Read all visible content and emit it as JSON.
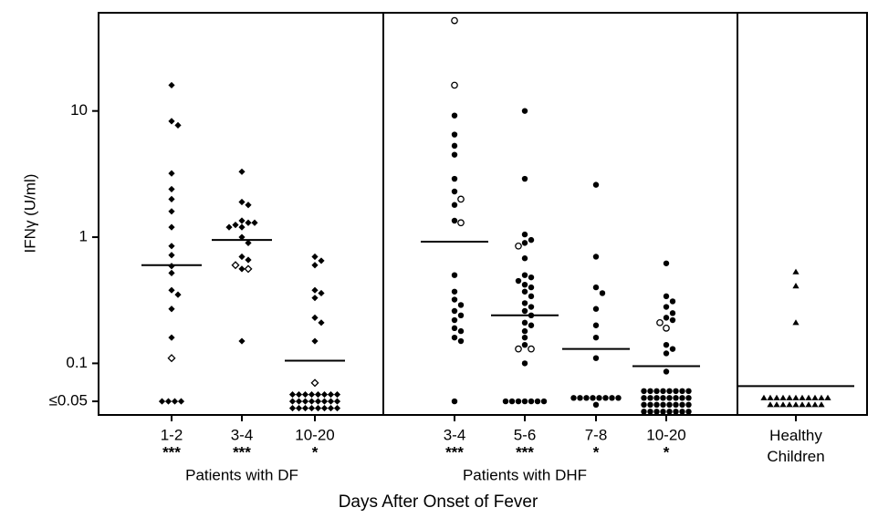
{
  "chart_data": {
    "type": "dot",
    "x_label": "Days After Onset of Fever",
    "y_label": "IFNγ (U/ml)",
    "log_scale": true,
    "color": "#000000",
    "ylim": [
      0.039,
      60
    ],
    "yticks": [
      {
        "value": 0.05,
        "label": "≤0.05"
      },
      0.1,
      1,
      10
    ],
    "panels": [
      {
        "label": "Patients with DF",
        "marker": "diamond",
        "groups": [
          {
            "label": "1-2",
            "stars": "***",
            "median": 0.6,
            "filled": [
              16,
              8.3,
              7.7,
              3.2,
              2.4,
              2.0,
              1.6,
              1.2,
              0.85,
              0.72,
              0.59,
              0.52,
              0.38,
              0.35,
              0.27,
              0.16,
              0.05,
              0.05,
              0.05,
              0.05
            ],
            "open": [
              0.11
            ]
          },
          {
            "label": "3-4",
            "stars": "***",
            "median": 0.95,
            "filled": [
              3.3,
              1.9,
              1.8,
              1.35,
              1.3,
              1.25,
              1.3,
              1.2,
              1.2,
              1.0,
              0.9,
              0.7,
              0.66,
              0.56,
              0.15
            ],
            "open": [
              0.6,
              0.56
            ]
          },
          {
            "label": "10-20",
            "stars": "*",
            "median": 0.105,
            "filled": [
              0.7,
              0.65,
              0.6,
              0.38,
              0.36,
              0.33,
              0.23,
              0.21,
              0.15,
              0.05,
              0.05,
              0.05,
              0.05,
              0.05,
              0.05,
              0.05,
              0.05,
              0.05,
              0.05,
              0.05,
              0.05,
              0.05,
              0.05,
              0.05,
              0.05,
              0.05,
              0.05,
              0.05,
              0.05,
              0.05,
              0.05,
              0.05,
              0.05
            ],
            "open": [
              0.07
            ]
          }
        ]
      },
      {
        "label": "Patients with DHF",
        "marker": "circle",
        "groups": [
          {
            "label": "3-4",
            "stars": "***",
            "median": 0.92,
            "filled": [
              9.2,
              6.5,
              5.3,
              4.5,
              2.9,
              2.3,
              1.8,
              1.35,
              0.5,
              0.37,
              0.32,
              0.29,
              0.26,
              0.24,
              0.22,
              0.19,
              0.18,
              0.16,
              0.15,
              0.05
            ],
            "open": [
              52,
              16,
              2.0,
              1.3
            ]
          },
          {
            "label": "5-6",
            "stars": "***",
            "median": 0.24,
            "filled": [
              10,
              2.9,
              1.05,
              0.95,
              0.9,
              0.68,
              0.5,
              0.48,
              0.45,
              0.42,
              0.4,
              0.37,
              0.34,
              0.3,
              0.28,
              0.26,
              0.24,
              0.21,
              0.2,
              0.18,
              0.16,
              0.14,
              0.1,
              0.05,
              0.05,
              0.05,
              0.05,
              0.05,
              0.05,
              0.05
            ],
            "open": [
              0.85,
              0.13,
              0.13
            ]
          },
          {
            "label": "7-8",
            "stars": "*",
            "median": 0.13,
            "filled": [
              2.6,
              0.7,
              0.4,
              0.36,
              0.27,
              0.2,
              0.16,
              0.11,
              0.05,
              0.05,
              0.05,
              0.05,
              0.05,
              0.05,
              0.05,
              0.05,
              0.05
            ],
            "open": []
          },
          {
            "label": "10-20",
            "stars": "*",
            "median": 0.095,
            "filled": [
              0.62,
              0.34,
              0.31,
              0.28,
              0.25,
              0.23,
              0.22,
              0.14,
              0.13,
              0.12,
              0.086,
              0.05,
              0.05,
              0.05,
              0.05,
              0.05,
              0.05,
              0.05,
              0.05,
              0.05,
              0.05,
              0.05,
              0.05,
              0.05,
              0.05,
              0.05,
              0.05,
              0.05,
              0.05,
              0.05,
              0.05,
              0.05,
              0.05,
              0.05,
              0.05,
              0.05,
              0.05,
              0.05,
              0.05,
              0.05,
              0.05,
              0.05,
              0.05
            ],
            "open": [
              0.21,
              0.19
            ]
          }
        ]
      },
      {
        "marker": "triangle",
        "groups": [
          {
            "label": "Healthy Children",
            "median": 0.066,
            "filled": [
              0.53,
              0.41,
              0.21,
              0.05,
              0.05,
              0.05,
              0.05,
              0.05,
              0.05,
              0.05,
              0.05,
              0.05,
              0.05,
              0.05,
              0.05,
              0.05,
              0.05,
              0.05,
              0.05,
              0.05,
              0.05,
              0.05,
              0.05
            ],
            "open": []
          }
        ]
      }
    ]
  }
}
